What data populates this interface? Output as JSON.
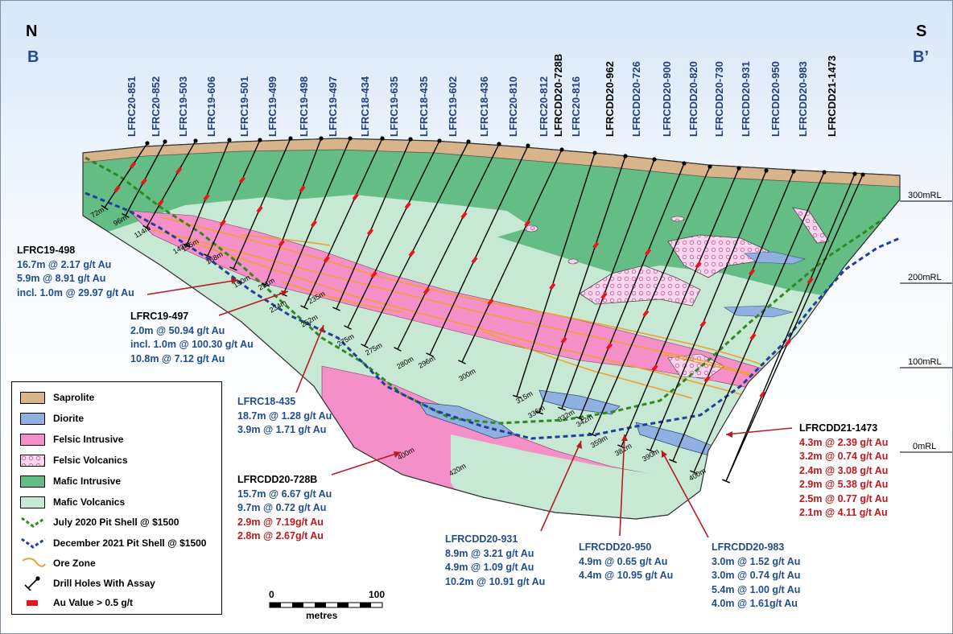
{
  "orientation": {
    "left_letter": "N",
    "left_section": "B",
    "right_letter": "S",
    "right_section": "B’"
  },
  "drill_holes": [
    {
      "name": "LFRC20-851",
      "depth_label": "72m",
      "label_color": "blue"
    },
    {
      "name": "LFRC20-852",
      "depth_label": "96m",
      "label_color": "blue"
    },
    {
      "name": "LFRC19-503",
      "depth_label": "114m",
      "label_color": "blue"
    },
    {
      "name": "LFRC19-606",
      "depth_label": "143m",
      "label_color": "blue"
    },
    {
      "name": "LFRC19-501",
      "depth_label": "155m",
      "label_color": "blue"
    },
    {
      "name": "LFRC19-499",
      "depth_label": "168m",
      "label_color": "blue"
    },
    {
      "name": "LFRC19-498",
      "depth_label": "190m",
      "label_color": "blue"
    },
    {
      "name": "LFRC19-497",
      "depth_label": "211m",
      "label_color": "blue"
    },
    {
      "name": "LFRC18-434",
      "depth_label": "234m",
      "label_color": "blue"
    },
    {
      "name": "LFRC19-635",
      "depth_label": "235m",
      "label_color": "blue"
    },
    {
      "name": "LFRC18-435",
      "depth_label": "252m",
      "label_color": "blue"
    },
    {
      "name": "LFRC19-602",
      "depth_label": "275m",
      "label_color": "blue"
    },
    {
      "name": "LFRC18-436",
      "depth_label": "275m",
      "label_color": "blue"
    },
    {
      "name": "LFRC20-810",
      "depth_label": "280m",
      "label_color": "blue"
    },
    {
      "name": "LFRC20-812",
      "depth_label": "296m",
      "label_color": "blue"
    },
    {
      "name": "LFRCDD20-728B",
      "depth_label": "300m",
      "label_color": "black"
    },
    {
      "name": "LFRC20-816",
      "depth_label": "315m",
      "label_color": "blue"
    },
    {
      "name": "LFRCDD20-962",
      "depth_label": "336m",
      "label_color": "black"
    },
    {
      "name": "LFRCDD20-726",
      "depth_label": "332m",
      "label_color": "blue"
    },
    {
      "name": "LFRCDD20-900",
      "depth_label": "342m",
      "label_color": "blue"
    },
    {
      "name": "LFRCDD20-820",
      "depth_label": "359m",
      "label_color": "blue"
    },
    {
      "name": "LFRCDD20-730",
      "depth_label": "381m",
      "label_color": "blue"
    },
    {
      "name": "LFRCDD20-931",
      "depth_label": "390m",
      "label_color": "blue"
    },
    {
      "name": "LFRCDD20-950",
      "depth_label": "400m",
      "label_color": "blue"
    },
    {
      "name": "LFRCDD20-983",
      "depth_label": "420m",
      "label_color": "blue"
    },
    {
      "name": "LFRCDD21-1473",
      "depth_label": "400m",
      "label_color": "black"
    }
  ],
  "elevation_labels": [
    "300mRL",
    "200mRL",
    "100mRL",
    "0mRL"
  ],
  "annotations": [
    {
      "id": "lfrc19-498",
      "name": "LFRC19-498",
      "lines": [
        {
          "text": "16.7m @ 2.17 g/t Au",
          "color": "blue"
        },
        {
          "text": "5.9m @ 8.91 g/t Au",
          "color": "blue"
        },
        {
          "text": "incl. 1.0m @ 29.97 g/t Au",
          "color": "blue"
        }
      ]
    },
    {
      "id": "lfrc19-497",
      "name": "LFRC19-497",
      "lines": [
        {
          "text": "2.0m @ 50.94 g/t Au",
          "color": "blue"
        },
        {
          "text": "incl. 1.0m @ 100.30 g/t Au",
          "color": "blue"
        },
        {
          "text": "10.8m @ 7.12 g/t Au",
          "color": "blue"
        }
      ]
    },
    {
      "id": "lfrc18-435",
      "name": "LFRC18-435",
      "lines": [
        {
          "text": "18.7m @ 1.28 g/t Au",
          "color": "blue"
        },
        {
          "text": "3.9m @ 1.71 g/t Au",
          "color": "blue"
        }
      ]
    },
    {
      "id": "lfrcdd20-728b",
      "name": "LFRCDD20-728B",
      "lines": [
        {
          "text": "15.7m @ 6.67 g/t Au",
          "color": "blue"
        },
        {
          "text": "9.7m @ 0.72 g/t Au",
          "color": "blue"
        },
        {
          "text": "2.9m @ 7.19g/t Au",
          "color": "red"
        },
        {
          "text": "2.8m @ 2.67g/t Au",
          "color": "red"
        }
      ]
    },
    {
      "id": "lfrcdd20-931",
      "name": "LFRCDD20-931",
      "lines": [
        {
          "text": "8.9m @ 3.21 g/t Au",
          "color": "blue"
        },
        {
          "text": "4.9m @ 1.09 g/t Au",
          "color": "blue"
        },
        {
          "text": "10.2m @ 10.91 g/t Au",
          "color": "blue"
        }
      ]
    },
    {
      "id": "lfrcdd20-950",
      "name": "LFRCDD20-950",
      "lines": [
        {
          "text": "4.9m @ 0.65 g/t Au",
          "color": "blue"
        },
        {
          "text": "4.4m @ 10.95 g/t Au",
          "color": "blue"
        }
      ]
    },
    {
      "id": "lfrcdd20-983",
      "name": "LFRCDD20-983",
      "lines": [
        {
          "text": "3.0m @ 1.52 g/t Au",
          "color": "blue"
        },
        {
          "text": "3.0m @ 0.74 g/t Au",
          "color": "blue"
        },
        {
          "text": "5.4m @ 1.00 g/t Au",
          "color": "blue"
        },
        {
          "text": "4.0m @ 1.61g/t Au",
          "color": "blue"
        }
      ]
    },
    {
      "id": "lfrcdd21-1473",
      "name": "LFRCDD21-1473",
      "lines": [
        {
          "text": "4.3m @ 2.39 g/t Au",
          "color": "red"
        },
        {
          "text": "3.2m @ 0.74 g/t Au",
          "color": "red"
        },
        {
          "text": "2.4m @ 3.08 g/t Au",
          "color": "red"
        },
        {
          "text": "2.9m @ 5.38 g/t Au",
          "color": "red"
        },
        {
          "text": "2.5m @ 0.77 g/t Au",
          "color": "red"
        },
        {
          "text": "2.1m @ 4.11 g/t Au",
          "color": "red"
        }
      ]
    }
  ],
  "legend": {
    "items": [
      {
        "label": "Saprolite",
        "kind": "fill",
        "color": "#d8b48a"
      },
      {
        "label": "Diorite",
        "kind": "fill",
        "color": "#8fb0e0"
      },
      {
        "label": "Felsic Intrusive",
        "kind": "fill",
        "color": "#f48fc8"
      },
      {
        "label": "Felsic Volcanics",
        "kind": "dots",
        "color": "#fbd6ee"
      },
      {
        "label": "Mafic Intrusive",
        "kind": "fill",
        "color": "#63bd84"
      },
      {
        "label": "Mafic Volcanics",
        "kind": "fill",
        "color": "#c7e8d2"
      },
      {
        "label": "July 2020 Pit Shell @ $1500",
        "kind": "dash",
        "color": "#2e8a1f"
      },
      {
        "label": "December 2021 Pit Shell @ $1500",
        "kind": "dash",
        "color": "#1f3f9a"
      },
      {
        "label": "Ore Zone",
        "kind": "curve",
        "color": "#f0a030"
      },
      {
        "label": "Drill Holes With Assay",
        "kind": "hole",
        "color": "#000000"
      },
      {
        "label": "Au Value > 0.5 g/t",
        "kind": "bar",
        "color": "#e8141c"
      }
    ]
  },
  "scale": {
    "min_label": "0",
    "max_label": "100",
    "unit": "metres"
  },
  "colors": {
    "saprolite": "#d8b48a",
    "mafic_intrusive": "#63bd84",
    "mafic_volcanics": "#c7e8d2",
    "felsic_intrusive": "#f48fc8",
    "felsic_volcanics": "#fbd6ee",
    "diorite": "#8fb0e0",
    "ore_zone": "#f0a030",
    "au_value": "#e8141c",
    "pit_2020": "#2e8a1f",
    "pit_2021": "#1f3f9a",
    "blue_text": "#1f4e8c",
    "red_text": "#c0181d"
  }
}
